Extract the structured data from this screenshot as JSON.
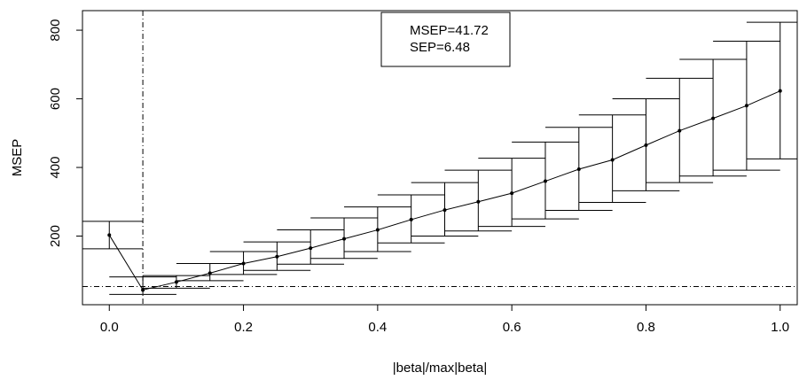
{
  "chart_data": {
    "type": "line",
    "xlabel": "|beta|/max|beta|",
    "ylabel": "MSEP",
    "x": [
      0,
      0.05,
      0.1,
      0.15,
      0.2,
      0.25,
      0.3,
      0.35,
      0.4,
      0.45,
      0.5,
      0.55,
      0.6,
      0.65,
      0.7,
      0.75,
      0.8,
      0.85,
      0.9,
      0.95,
      1.0
    ],
    "values": [
      203,
      43,
      66,
      92,
      120,
      140,
      165,
      192,
      218,
      248,
      276,
      300,
      325,
      360,
      395,
      422,
      465,
      507,
      543,
      580,
      623
    ],
    "upper": [
      243,
      81,
      85,
      120,
      155,
      183,
      218,
      253,
      285,
      320,
      356,
      392,
      427,
      474,
      517,
      553,
      600,
      660,
      715,
      768,
      823
    ],
    "lower": [
      163,
      30,
      48,
      70,
      88,
      100,
      118,
      135,
      155,
      180,
      200,
      215,
      228,
      250,
      275,
      298,
      332,
      356,
      375,
      392,
      425
    ],
    "color": "#000000",
    "hline": 53,
    "vline": 0.05,
    "legend": [
      "MSEP=41.72",
      "SEP=6.48"
    ],
    "xlim": [
      -0.04,
      1.04
    ],
    "ylim": [
      0,
      857
    ],
    "xticks": [
      {
        "value": 0,
        "label": "0.0"
      },
      {
        "value": 0.2,
        "label": "0.2"
      },
      {
        "value": 0.4,
        "label": "0.4"
      },
      {
        "value": 0.6,
        "label": "0.6"
      },
      {
        "value": 0.8,
        "label": "0.8"
      },
      {
        "value": 1.0,
        "label": "1.0"
      }
    ],
    "yticks": [
      200,
      400,
      600,
      800
    ]
  }
}
